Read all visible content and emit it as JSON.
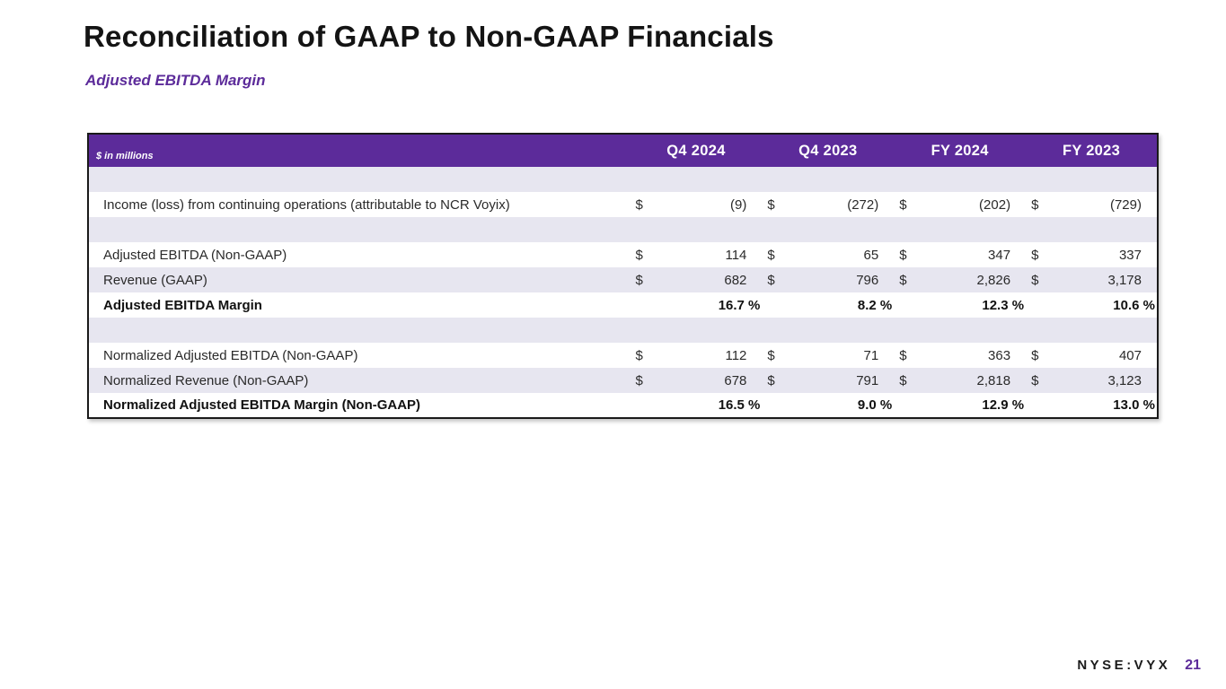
{
  "slide": {
    "title": "Reconciliation of GAAP to Non-GAAP Financials",
    "subtitle": "Adjusted EBITDA Margin"
  },
  "table": {
    "units_note": "$ in millions",
    "columns": [
      "Q4 2024",
      "Q4 2023",
      "FY 2024",
      "FY 2023"
    ],
    "currency_symbol": "$",
    "percent_symbol": "%",
    "rows": [
      {
        "type": "spacer",
        "label": "",
        "values": [
          "",
          "",
          "",
          ""
        ],
        "bold": false
      },
      {
        "type": "currency",
        "label": "Income (loss) from continuing operations (attributable to NCR Voyix)",
        "values": [
          "(9)",
          "(272)",
          "(202)",
          "(729)"
        ],
        "bold": false
      },
      {
        "type": "spacer",
        "label": "",
        "values": [
          "",
          "",
          "",
          ""
        ],
        "bold": false
      },
      {
        "type": "currency",
        "label": "Adjusted EBITDA (Non-GAAP)",
        "values": [
          "114",
          "65",
          "347",
          "337"
        ],
        "bold": false
      },
      {
        "type": "currency",
        "label": "Revenue (GAAP)",
        "values": [
          "682",
          "796",
          "2,826",
          "3,178"
        ],
        "bold": false
      },
      {
        "type": "percent",
        "label": "Adjusted EBITDA Margin",
        "values": [
          "16.7",
          "8.2",
          "12.3",
          "10.6"
        ],
        "bold": true
      },
      {
        "type": "spacer",
        "label": "",
        "values": [
          "",
          "",
          "",
          ""
        ],
        "bold": false
      },
      {
        "type": "currency",
        "label": "Normalized Adjusted EBITDA (Non-GAAP)",
        "values": [
          "112",
          "71",
          "363",
          "407"
        ],
        "bold": false
      },
      {
        "type": "currency",
        "label": "Normalized Revenue (Non-GAAP)",
        "values": [
          "678",
          "791",
          "2,818",
          "3,123"
        ],
        "bold": false
      },
      {
        "type": "percent",
        "label": "Normalized Adjusted EBITDA Margin (Non-GAAP)",
        "values": [
          "16.5",
          "9.0",
          "12.9",
          "13.0"
        ],
        "bold": true
      }
    ]
  },
  "footer": {
    "ticker": "NYSE:VYX",
    "page_number": "21"
  },
  "colors": {
    "brand_purple": "#5c2b9a",
    "row_alt_lavender": "#e7e6f0",
    "table_border": "#1a1a1a"
  }
}
